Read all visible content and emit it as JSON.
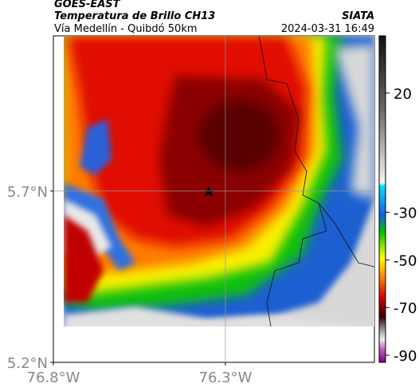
{
  "header": {
    "title": "GOES-EAST",
    "subtitle": "Temperatura de Brillo CH13",
    "source": "SIATA",
    "location": "Vía Medellín - Quibdó 50km",
    "timestamp": "2024-03-31 16:49"
  },
  "map": {
    "xlim": [
      -76.8,
      -75.867
    ],
    "ylim": [
      5.2,
      6.153
    ],
    "xticks": [
      {
        "value": -76.8,
        "label": "76.8°W"
      },
      {
        "value": -76.3,
        "label": "76.3°W"
      }
    ],
    "yticks": [
      {
        "value": 5.2,
        "label": "5.2°N"
      },
      {
        "value": 5.7,
        "label": "5.7°N"
      }
    ],
    "grid": true
  },
  "colorbar": {
    "clim": [
      -93,
      44
    ],
    "ticks": [
      20,
      -30,
      -50,
      -70,
      -90
    ]
  }
}
